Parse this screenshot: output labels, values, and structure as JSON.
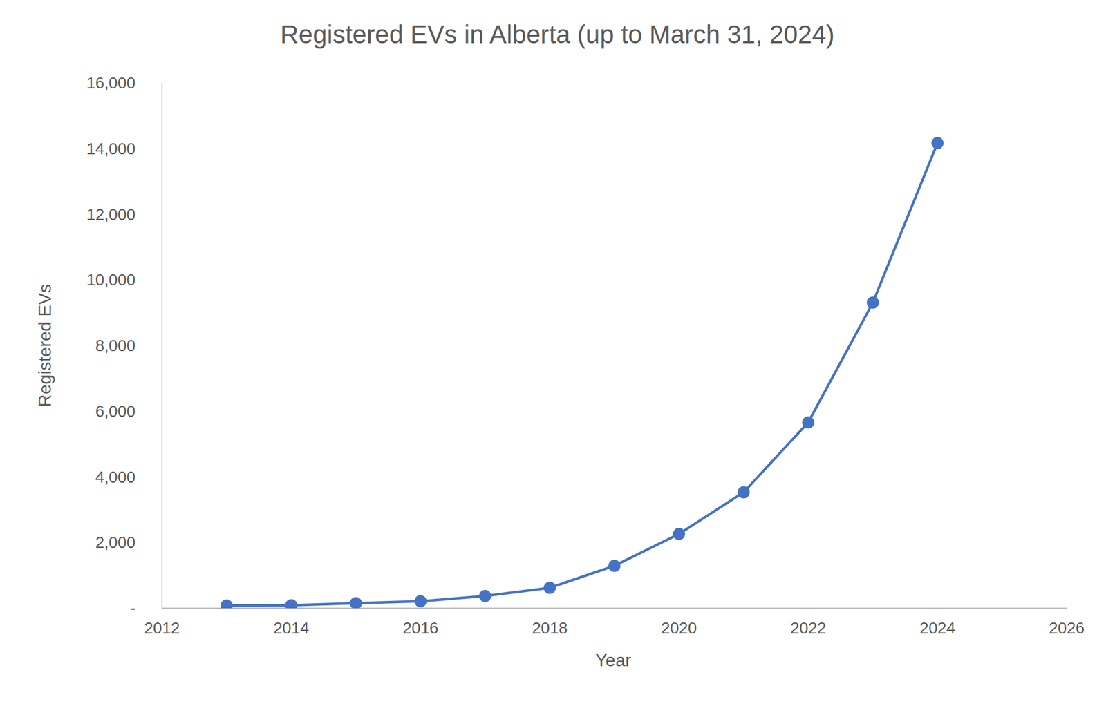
{
  "chart_data": {
    "type": "line",
    "title": "Registered EVs in Alberta (up to March 31, 2024)",
    "x_label": "Year",
    "y_label": "Registered EVs",
    "x": [
      2013,
      2014,
      2015,
      2016,
      2017,
      2018,
      2019,
      2020,
      2021,
      2022,
      2023,
      2024
    ],
    "series": [
      {
        "name": "Registered EVs",
        "color": "#4472c4",
        "marker": "circle",
        "values": [
          80,
          90,
          150,
          210,
          370,
          620,
          1290,
          2260,
          3530,
          5660,
          9310,
          14170
        ]
      }
    ],
    "xlim": [
      2012,
      2026
    ],
    "xticks": [
      2012,
      2014,
      2016,
      2018,
      2020,
      2022,
      2024,
      2026
    ],
    "ylim": [
      0,
      16000
    ],
    "yticks": [
      {
        "value": 0,
        "label": "-"
      },
      {
        "value": 2000,
        "label": "2,000"
      },
      {
        "value": 4000,
        "label": "4,000"
      },
      {
        "value": 6000,
        "label": "6,000"
      },
      {
        "value": 8000,
        "label": "8,000"
      },
      {
        "value": 10000,
        "label": "10,000"
      },
      {
        "value": 12000,
        "label": "12,000"
      },
      {
        "value": 14000,
        "label": "14,000"
      },
      {
        "value": 16000,
        "label": "16,000"
      }
    ],
    "grid": false
  }
}
